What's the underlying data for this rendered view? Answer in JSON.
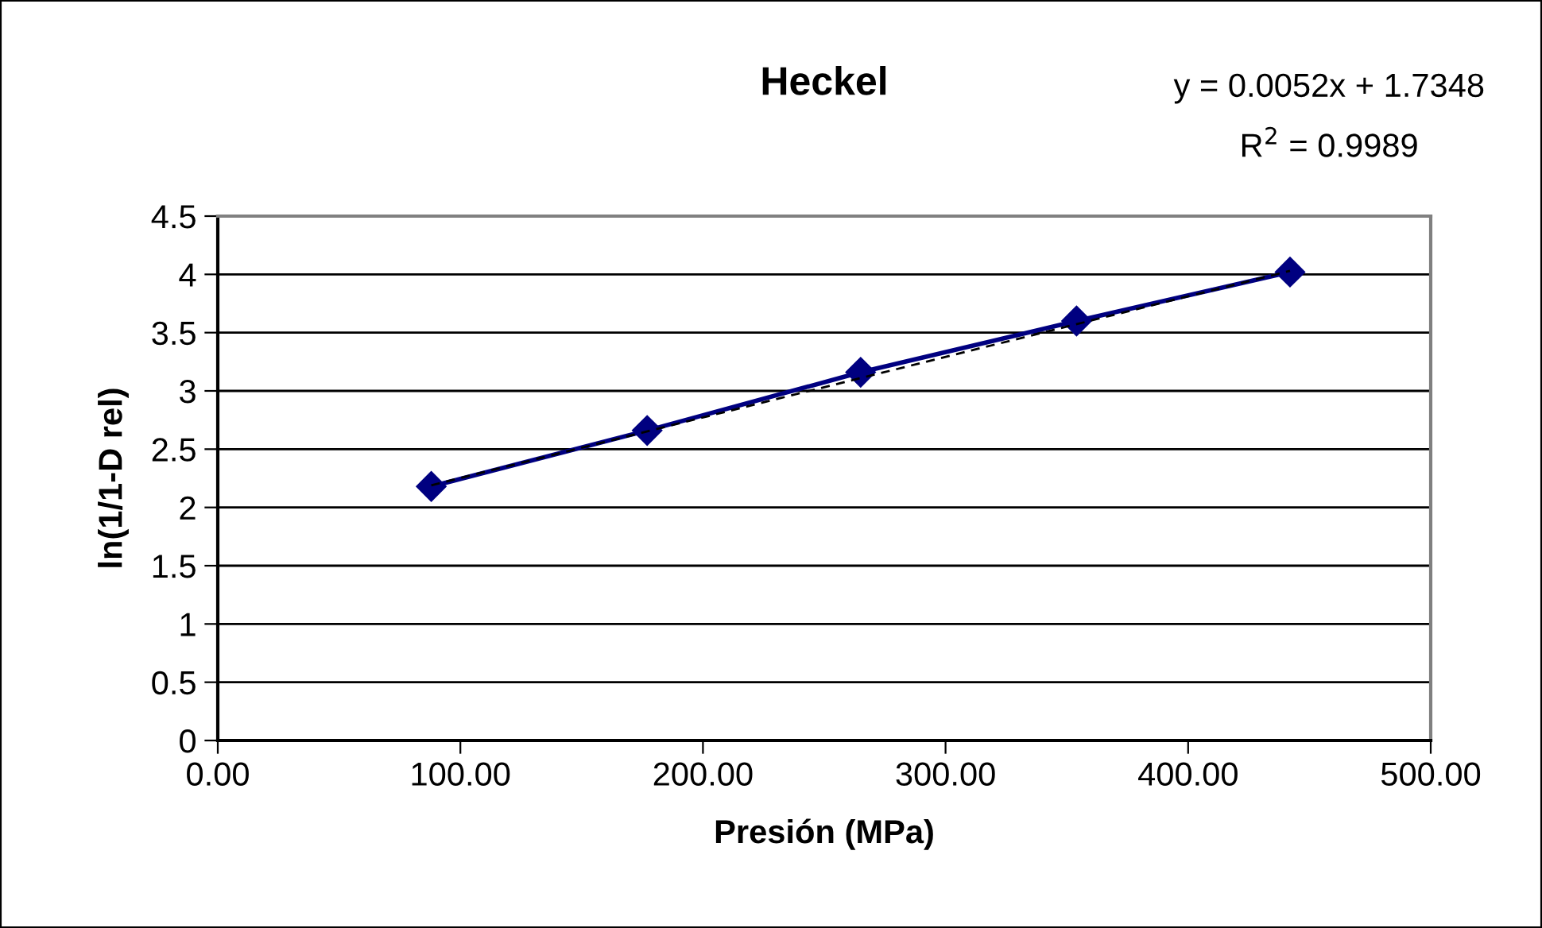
{
  "chart_data": {
    "type": "line",
    "title": "Heckel",
    "xlabel": "Presión (MPa)",
    "ylabel": "ln(1/1-D rel)",
    "annotations": [
      "y = 0.0052x + 1.7348",
      "R$^{2}$ = 0.9989"
    ],
    "xlim": [
      0,
      500
    ],
    "xticks": [
      {
        "value": 0,
        "label": "0.00"
      },
      {
        "value": 100,
        "label": "100.00"
      },
      {
        "value": 200,
        "label": "200.00"
      },
      {
        "value": 300,
        "label": "300.00"
      },
      {
        "value": 400,
        "label": "400.00"
      },
      {
        "value": 500,
        "label": "500.00"
      }
    ],
    "ylim": [
      0,
      4.5
    ],
    "yticks": [
      0,
      0.5,
      1,
      1.5,
      2,
      2.5,
      3,
      3.5,
      4,
      4.5
    ],
    "grid": "y",
    "legend": false,
    "series": [
      {
        "x": [
          88,
          177,
          265,
          354,
          442
        ],
        "values": [
          2.18,
          2.66,
          3.16,
          3.6,
          4.02
        ],
        "color": "#000080",
        "marker": "diamond",
        "line_style": "solid"
      },
      {
        "type": "line",
        "x": [
          88,
          442
        ],
        "values": [
          2.19,
          4.03
        ],
        "color": "#000000",
        "marker": "none",
        "line_style": "dashed"
      }
    ]
  }
}
